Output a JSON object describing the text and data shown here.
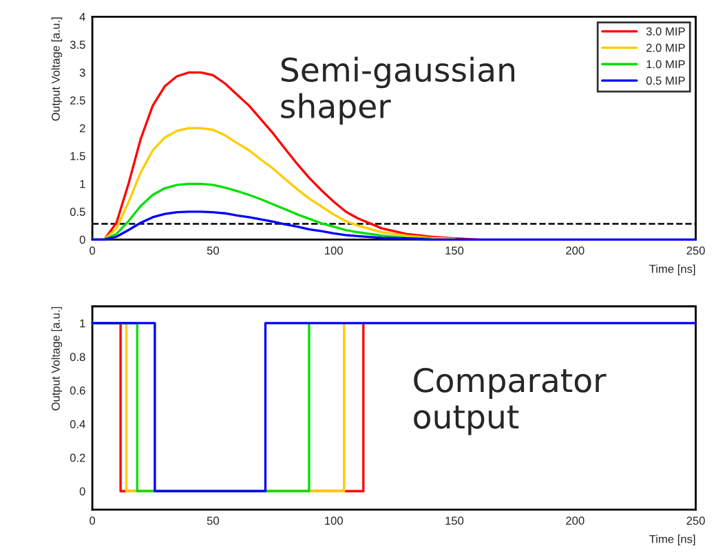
{
  "chart_data": [
    {
      "type": "line",
      "xlabel": "Time [ns]",
      "ylabel": "Output Voltage [a.u.]",
      "xlim": [
        0,
        250
      ],
      "ylim": [
        0,
        4
      ],
      "xticks": [
        0,
        50,
        100,
        150,
        200,
        250
      ],
      "yticks": [
        0,
        0.5,
        1,
        1.5,
        2,
        2.5,
        3,
        3.5,
        4
      ],
      "legend": "top right",
      "grid": false,
      "marker": "none",
      "line_style": "solid",
      "x": [
        0,
        5,
        10,
        15,
        20,
        25,
        30,
        35,
        40,
        45,
        50,
        55,
        60,
        65,
        70,
        75,
        80,
        85,
        90,
        95,
        100,
        105,
        110,
        120,
        130,
        140,
        150,
        160
      ],
      "series": [
        {
          "name": "3.0 MIP",
          "color": "#ff0000",
          "values": [
            0,
            0,
            0.3,
            1.0,
            1.8,
            2.4,
            2.75,
            2.93,
            3.0,
            3.0,
            2.95,
            2.8,
            2.6,
            2.4,
            2.15,
            1.9,
            1.62,
            1.35,
            1.1,
            0.88,
            0.68,
            0.5,
            0.38,
            0.2,
            0.1,
            0.05,
            0.02,
            0
          ]
        },
        {
          "name": "2.0 MIP",
          "color": "#ffcc00",
          "x": [
            0,
            5,
            10,
            15,
            20,
            25,
            30,
            35,
            40,
            45,
            50,
            55,
            60,
            65,
            70,
            75,
            80,
            85,
            90,
            95,
            100,
            105,
            110,
            120,
            130,
            140,
            150
          ],
          "values": [
            0,
            0,
            0.2,
            0.67,
            1.2,
            1.6,
            1.83,
            1.95,
            2.0,
            2.0,
            1.97,
            1.87,
            1.73,
            1.6,
            1.43,
            1.27,
            1.08,
            0.9,
            0.73,
            0.59,
            0.45,
            0.33,
            0.25,
            0.13,
            0.07,
            0.03,
            0.01
          ]
        },
        {
          "name": "1.0 MIP",
          "color": "#00e000",
          "x": [
            0,
            5,
            10,
            15,
            20,
            25,
            30,
            35,
            40,
            45,
            50,
            55,
            60,
            65,
            70,
            75,
            80,
            85,
            90,
            95,
            100,
            105,
            110,
            120,
            130,
            140
          ],
          "values": [
            0,
            0,
            0.1,
            0.33,
            0.6,
            0.8,
            0.92,
            0.98,
            1.0,
            1.0,
            0.98,
            0.93,
            0.87,
            0.8,
            0.72,
            0.63,
            0.54,
            0.45,
            0.37,
            0.29,
            0.23,
            0.17,
            0.13,
            0.07,
            0.03,
            0.02
          ]
        },
        {
          "name": "0.5 MIP",
          "color": "#0000ff",
          "x": [
            0,
            5,
            10,
            15,
            20,
            25,
            30,
            35,
            40,
            45,
            50,
            55,
            60,
            65,
            70,
            75,
            80,
            85,
            90,
            95,
            100,
            105,
            110,
            120,
            130,
            140,
            250
          ],
          "values": [
            0,
            0,
            0.05,
            0.17,
            0.3,
            0.4,
            0.46,
            0.49,
            0.5,
            0.5,
            0.49,
            0.47,
            0.43,
            0.4,
            0.36,
            0.32,
            0.27,
            0.23,
            0.18,
            0.15,
            0.11,
            0.08,
            0.06,
            0.03,
            0.02,
            0,
            0
          ]
        }
      ],
      "ref_lines": [
        {
          "axis": "y",
          "value": 0.28,
          "color": "#000000",
          "line_style": "dashed"
        }
      ],
      "annotations": [
        "Semi-gaussian\nshaper"
      ]
    },
    {
      "type": "step",
      "xlabel": "Time [ns]",
      "ylabel": "Output Voltage [a.u.]",
      "xlim": [
        0,
        250
      ],
      "ylim": [
        -0.11,
        1.1
      ],
      "xticks": [
        0,
        50,
        100,
        150,
        200,
        250
      ],
      "yticks": [
        0,
        0.2,
        0.4,
        0.6,
        0.8,
        1
      ],
      "grid": false,
      "legend": false,
      "marker": "none",
      "line_style": "solid",
      "series": [
        {
          "color": "#ff0000",
          "x": [
            0,
            11.7,
            112.3
          ],
          "values": [
            1,
            0,
            1
          ]
        },
        {
          "color": "#ffcc00",
          "x": [
            0,
            14.1,
            104.3
          ],
          "values": [
            1,
            0,
            1
          ]
        },
        {
          "color": "#00e000",
          "x": [
            0,
            18.6,
            89.8
          ],
          "values": [
            1,
            0,
            1
          ]
        },
        {
          "color": "#0000ff",
          "x": [
            0,
            25.9,
            71.7,
            250
          ],
          "values": [
            1,
            0,
            1,
            1
          ]
        }
      ],
      "annotations": [
        "Comparator\noutput"
      ]
    }
  ]
}
